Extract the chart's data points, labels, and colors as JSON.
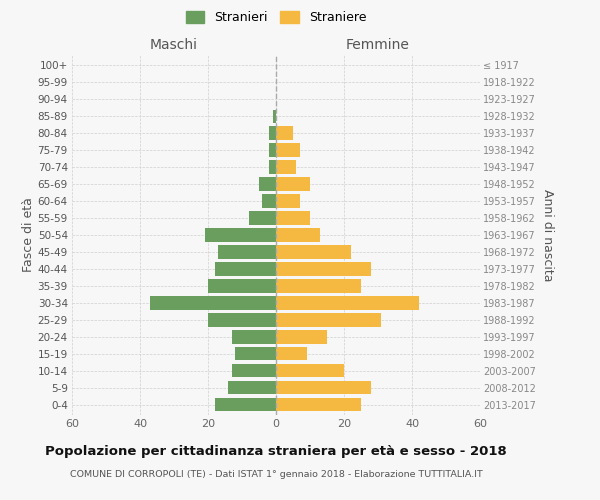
{
  "age_groups": [
    "100+",
    "95-99",
    "90-94",
    "85-89",
    "80-84",
    "75-79",
    "70-74",
    "65-69",
    "60-64",
    "55-59",
    "50-54",
    "45-49",
    "40-44",
    "35-39",
    "30-34",
    "25-29",
    "20-24",
    "15-19",
    "10-14",
    "5-9",
    "0-4"
  ],
  "birth_years": [
    "≤ 1917",
    "1918-1922",
    "1923-1927",
    "1928-1932",
    "1933-1937",
    "1938-1942",
    "1943-1947",
    "1948-1952",
    "1953-1957",
    "1958-1962",
    "1963-1967",
    "1968-1972",
    "1973-1977",
    "1978-1982",
    "1983-1987",
    "1988-1992",
    "1993-1997",
    "1998-2002",
    "2003-2007",
    "2008-2012",
    "2013-2017"
  ],
  "maschi": [
    0,
    0,
    0,
    1,
    2,
    2,
    2,
    5,
    4,
    8,
    21,
    17,
    18,
    20,
    37,
    20,
    13,
    12,
    13,
    14,
    18
  ],
  "femmine": [
    0,
    0,
    0,
    0,
    5,
    7,
    6,
    10,
    7,
    10,
    13,
    22,
    28,
    25,
    42,
    31,
    15,
    9,
    20,
    28,
    25
  ],
  "maschi_color": "#6a9e5e",
  "femmine_color": "#f5b942",
  "title": "Popolazione per cittadinanza straniera per età e sesso - 2018",
  "subtitle": "COMUNE DI CORROPOLI (TE) - Dati ISTAT 1° gennaio 2018 - Elaborazione TUTTITALIA.IT",
  "xlabel_left": "Maschi",
  "xlabel_right": "Femmine",
  "ylabel_left": "Fasce di età",
  "ylabel_right": "Anni di nascita",
  "legend_stranieri": "Stranieri",
  "legend_straniere": "Straniere",
  "xlim": 60,
  "background_color": "#f7f7f7",
  "grid_color": "#d0d0d0"
}
